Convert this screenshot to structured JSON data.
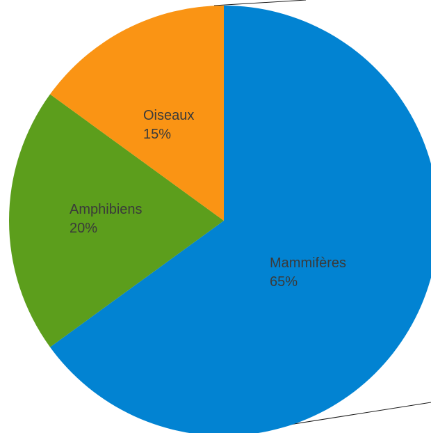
{
  "chart_data": {
    "type": "pie",
    "start_angle_deg": 0,
    "direction": "clockwise",
    "slices": [
      {
        "name": "Mammifères",
        "value": 65,
        "percent_label": "65%",
        "color": "#0283D2"
      },
      {
        "name": "Amphibiens",
        "value": 20,
        "percent_label": "20%",
        "color": "#5C9E1C"
      },
      {
        "name": "Oiseaux",
        "value": 15,
        "percent_label": "15%",
        "color": "#FA9414"
      }
    ]
  }
}
